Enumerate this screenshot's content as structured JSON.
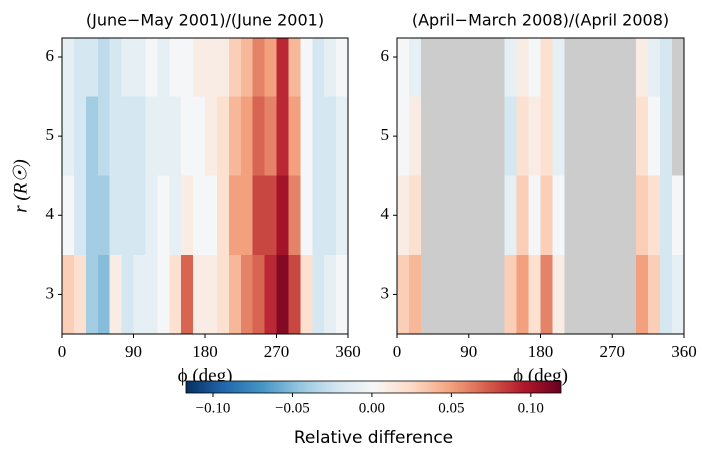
{
  "chart_data": [
    {
      "type": "heatmap",
      "title": "(June−May 2001)/(June 2001)",
      "xlabel": "ϕ (deg)",
      "ylabel": "r (R☉)",
      "x_bins": [
        0,
        15,
        30,
        45,
        60,
        75,
        90,
        105,
        120,
        135,
        150,
        165,
        180,
        195,
        210,
        225,
        240,
        255,
        270,
        285,
        300,
        315,
        330,
        345,
        360
      ],
      "y_bins": [
        2.5,
        3.5,
        4.5,
        5.5,
        6.24
      ],
      "values": [
        [
          0.03,
          0.02,
          -0.04,
          -0.05,
          0.01,
          -0.02,
          -0.01,
          -0.01,
          0.0,
          0.02,
          0.07,
          0.01,
          0.01,
          0.02,
          0.04,
          0.06,
          0.07,
          0.09,
          0.11,
          0.08,
          0.02,
          -0.02,
          -0.01,
          0.0
        ],
        [
          0.0,
          -0.02,
          -0.04,
          -0.04,
          -0.02,
          -0.02,
          -0.02,
          -0.01,
          0.0,
          -0.01,
          0.01,
          0.0,
          0.0,
          0.02,
          0.05,
          0.05,
          0.08,
          0.08,
          0.1,
          0.06,
          0.0,
          -0.02,
          -0.02,
          -0.01
        ],
        [
          -0.01,
          -0.02,
          -0.04,
          -0.03,
          -0.02,
          -0.02,
          -0.02,
          -0.01,
          -0.01,
          -0.01,
          0.0,
          0.0,
          0.01,
          0.02,
          0.04,
          0.05,
          0.07,
          0.06,
          0.09,
          0.05,
          0.0,
          -0.02,
          -0.02,
          -0.01
        ],
        [
          -0.01,
          -0.02,
          -0.02,
          -0.03,
          -0.02,
          -0.01,
          -0.01,
          0.0,
          -0.01,
          0.0,
          0.0,
          0.01,
          0.01,
          0.01,
          0.03,
          0.04,
          0.06,
          0.05,
          0.09,
          0.04,
          0.0,
          -0.02,
          -0.01,
          0.0
        ]
      ],
      "xlim": [
        0,
        360
      ],
      "ylim": [
        2.5,
        6.24
      ],
      "xticks": [
        0,
        90,
        180,
        270,
        360
      ],
      "yticks": [
        3,
        4,
        5,
        6
      ],
      "colormap": "RdBu_r",
      "missing_color": "#cccccc"
    },
    {
      "type": "heatmap",
      "title": "(April−March 2008)/(April 2008)",
      "xlabel": "ϕ (deg)",
      "x_bins": [
        0,
        15,
        30,
        45,
        60,
        75,
        90,
        105,
        120,
        135,
        150,
        165,
        180,
        195,
        210,
        225,
        240,
        255,
        270,
        285,
        300,
        315,
        330,
        345,
        360
      ],
      "y_bins": [
        2.5,
        3.5,
        4.5,
        5.5,
        6.24
      ],
      "values": [
        [
          0.03,
          0.04,
          null,
          null,
          null,
          null,
          null,
          null,
          null,
          0.03,
          0.05,
          0.02,
          0.06,
          0.01,
          null,
          null,
          null,
          null,
          null,
          null,
          0.05,
          0.03,
          -0.02,
          -0.01
        ],
        [
          0.01,
          0.02,
          null,
          null,
          null,
          null,
          null,
          null,
          null,
          -0.01,
          0.03,
          0.0,
          0.03,
          0.0,
          null,
          null,
          null,
          null,
          null,
          null,
          0.03,
          0.02,
          -0.02,
          0.0
        ],
        [
          0.0,
          0.01,
          null,
          null,
          null,
          null,
          null,
          null,
          null,
          -0.02,
          0.02,
          0.01,
          0.02,
          -0.01,
          null,
          null,
          null,
          null,
          null,
          null,
          0.02,
          0.0,
          -0.02,
          null
        ],
        [
          0.0,
          -0.01,
          null,
          null,
          null,
          null,
          null,
          null,
          null,
          -0.01,
          0.01,
          0.0,
          0.02,
          -0.01,
          null,
          null,
          null,
          null,
          null,
          null,
          0.01,
          -0.01,
          -0.02,
          null
        ]
      ],
      "xlim": [
        0,
        360
      ],
      "ylim": [
        2.5,
        6.24
      ],
      "xticks": [
        0,
        90,
        180,
        270,
        360
      ],
      "yticks": [
        3,
        4,
        5,
        6
      ],
      "colormap": "RdBu_r",
      "missing_color": "#cccccc"
    }
  ],
  "colorbar": {
    "label": "Relative difference",
    "clim": [
      -0.117,
      0.119
    ],
    "colormap": "RdBu_r",
    "ticks": [
      {
        "value": -0.1,
        "label": "−0.10"
      },
      {
        "value": -0.05,
        "label": "−0.05"
      },
      {
        "value": 0,
        "label": "0.00"
      },
      {
        "value": 0.05,
        "label": "0.05"
      },
      {
        "value": 0.1,
        "label": "0.10"
      }
    ]
  }
}
